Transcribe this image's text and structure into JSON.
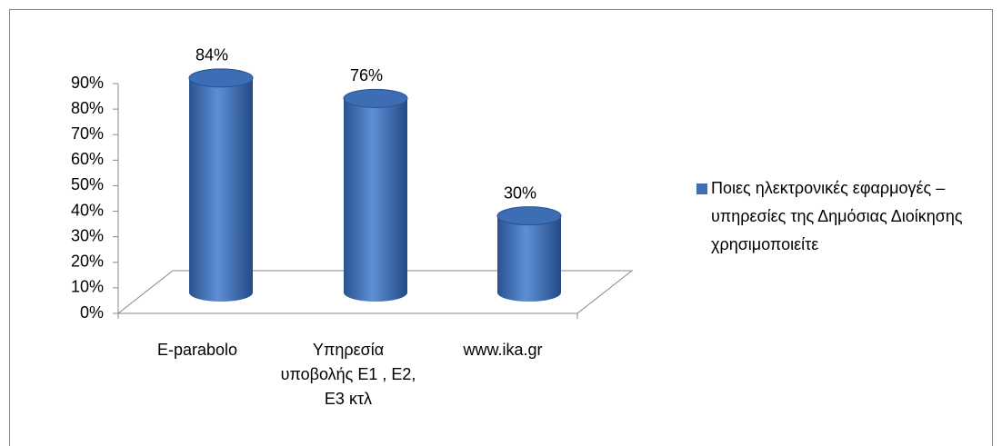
{
  "chart_data": {
    "type": "bar3d",
    "categories": [
      "E-parabolo",
      "Υπηρεσία υποβολής Ε1 , Ε2, Ε3 κτλ",
      "www.ika.gr"
    ],
    "series": [
      {
        "name": "Ποιες ηλεκτρονικές εφαρμογές – υπηρεσίες της Δημόσιας Διοίκησης χρησιμοποιείτε",
        "color": "#3d6db5",
        "values": [
          84,
          76,
          30
        ],
        "value_labels": [
          "84%",
          "76%",
          "30%"
        ]
      }
    ],
    "ylim": [
      0,
      90
    ],
    "yticks": [
      {
        "value": 0,
        "label": "0%"
      },
      {
        "value": 10,
        "label": "10%"
      },
      {
        "value": 20,
        "label": "20%"
      },
      {
        "value": 30,
        "label": "30%"
      },
      {
        "value": 40,
        "label": "40%"
      },
      {
        "value": 50,
        "label": "50%"
      },
      {
        "value": 60,
        "label": "60%"
      },
      {
        "value": 70,
        "label": "70%"
      },
      {
        "value": 80,
        "label": "80%"
      },
      {
        "value": 90,
        "label": "90%"
      }
    ],
    "legend": "right"
  }
}
